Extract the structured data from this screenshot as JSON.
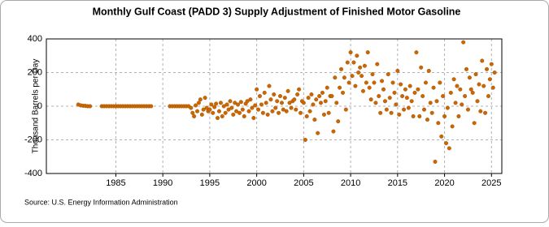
{
  "chart_data": {
    "type": "scatter",
    "title": "Monthly Gulf Coast (PADD 3) Supply Adjustment of Finished Motor Gasoline",
    "y_label": "Thousand Barrels per Day",
    "source": "Source: U.S. Energy Information Administration",
    "color": "#cc6600",
    "grid": true,
    "xlim": [
      1977.6,
      2026.1
    ],
    "ylim": [
      -400,
      400
    ],
    "xticks": [
      1985,
      1990,
      1995,
      2000,
      2005,
      2010,
      2015,
      2020,
      2025
    ],
    "yticks": [
      -400,
      -200,
      0,
      200,
      400
    ],
    "x": [
      1981.0,
      1981.25,
      1981.5,
      1981.75,
      1982.0,
      1982.25,
      1983.5,
      1983.75,
      1984.0,
      1984.25,
      1984.5,
      1984.75,
      1985.0,
      1985.25,
      1985.5,
      1985.75,
      1986.0,
      1986.25,
      1986.5,
      1986.75,
      1987.0,
      1987.25,
      1987.5,
      1987.75,
      1988.0,
      1988.25,
      1988.5,
      1988.75,
      1990.75,
      1991.0,
      1991.25,
      1991.5,
      1991.75,
      1992.0,
      1992.25,
      1992.5,
      1992.75,
      1993.0,
      1993.17,
      1993.33,
      1993.5,
      1993.67,
      1993.83,
      1994.0,
      1994.17,
      1994.33,
      1994.5,
      1994.67,
      1994.83,
      1995.0,
      1995.17,
      1995.33,
      1995.5,
      1995.67,
      1995.83,
      1996.0,
      1996.17,
      1996.33,
      1996.5,
      1996.67,
      1996.83,
      1997.0,
      1997.17,
      1997.33,
      1997.5,
      1997.67,
      1997.83,
      1998.0,
      1998.17,
      1998.33,
      1998.5,
      1998.67,
      1998.83,
      1999.0,
      1999.17,
      1999.33,
      1999.5,
      1999.67,
      1999.83,
      2000.0,
      2000.17,
      2000.33,
      2000.5,
      2000.67,
      2000.83,
      2001.0,
      2001.17,
      2001.33,
      2001.5,
      2001.67,
      2001.83,
      2002.0,
      2002.17,
      2002.33,
      2002.5,
      2002.67,
      2002.83,
      2003.0,
      2003.17,
      2003.33,
      2003.5,
      2003.67,
      2003.83,
      2004.0,
      2004.17,
      2004.33,
      2004.5,
      2004.67,
      2004.83,
      2005.0,
      2005.17,
      2005.33,
      2005.5,
      2005.67,
      2005.83,
      2006.0,
      2006.17,
      2006.33,
      2006.5,
      2006.67,
      2006.83,
      2007.0,
      2007.17,
      2007.33,
      2007.5,
      2007.67,
      2007.83,
      2008.0,
      2008.17,
      2008.33,
      2008.5,
      2008.67,
      2008.83,
      2009.0,
      2009.17,
      2009.33,
      2009.5,
      2009.67,
      2009.83,
      2010.0,
      2010.17,
      2010.33,
      2010.5,
      2010.67,
      2010.83,
      2011.0,
      2011.17,
      2011.33,
      2011.5,
      2011.67,
      2011.83,
      2012.0,
      2012.17,
      2012.33,
      2012.5,
      2012.67,
      2012.83,
      2013.0,
      2013.17,
      2013.33,
      2013.5,
      2013.67,
      2013.83,
      2014.0,
      2014.17,
      2014.33,
      2014.5,
      2014.67,
      2014.83,
      2015.0,
      2015.17,
      2015.33,
      2015.5,
      2015.67,
      2015.83,
      2016.0,
      2016.17,
      2016.33,
      2016.5,
      2016.67,
      2016.83,
      2017.0,
      2017.17,
      2017.33,
      2017.5,
      2017.67,
      2017.83,
      2018.0,
      2018.17,
      2018.33,
      2018.5,
      2018.67,
      2018.83,
      2019.0,
      2019.17,
      2019.33,
      2019.5,
      2019.67,
      2019.83,
      2020.0,
      2020.17,
      2020.33,
      2020.5,
      2020.67,
      2020.83,
      2021.0,
      2021.17,
      2021.33,
      2021.5,
      2021.67,
      2021.83,
      2022.0,
      2022.17,
      2022.33,
      2022.5,
      2022.67,
      2022.83,
      2023.0,
      2023.17,
      2023.33,
      2023.5,
      2023.67,
      2023.83,
      2024.0,
      2024.17,
      2024.33,
      2024.5,
      2024.67,
      2024.83,
      2025.0,
      2025.17,
      2025.33
    ],
    "values": [
      10,
      5,
      3,
      2,
      0,
      0,
      0,
      0,
      0,
      0,
      0,
      0,
      0,
      0,
      0,
      0,
      0,
      0,
      0,
      0,
      0,
      0,
      0,
      0,
      0,
      0,
      0,
      0,
      0,
      0,
      0,
      0,
      0,
      0,
      0,
      0,
      0,
      -10,
      -40,
      -60,
      5,
      -30,
      20,
      40,
      -50,
      -20,
      50,
      -10,
      -30,
      -20,
      10,
      -40,
      -5,
      15,
      -70,
      -30,
      20,
      -60,
      0,
      -40,
      10,
      -20,
      30,
      -10,
      -50,
      20,
      -30,
      10,
      -40,
      25,
      -20,
      -60,
      15,
      30,
      -30,
      40,
      -10,
      -70,
      5,
      100,
      -20,
      60,
      10,
      -40,
      80,
      20,
      -50,
      120,
      40,
      -30,
      70,
      -10,
      30,
      -40,
      60,
      20,
      -20,
      50,
      -30,
      90,
      20,
      -10,
      30,
      40,
      -20,
      70,
      100,
      -40,
      30,
      20,
      -200,
      -60,
      50,
      -30,
      70,
      10,
      -80,
      40,
      -160,
      60,
      20,
      80,
      -50,
      30,
      110,
      -40,
      60,
      60,
      -150,
      170,
      20,
      -90,
      110,
      220,
      80,
      170,
      -20,
      260,
      140,
      320,
      180,
      260,
      120,
      300,
      200,
      230,
      180,
      90,
      240,
      140,
      320,
      110,
      40,
      190,
      140,
      20,
      250,
      60,
      -40,
      150,
      100,
      30,
      -20,
      190,
      50,
      -40,
      140,
      80,
      10,
      210,
      -50,
      130,
      60,
      -20,
      100,
      50,
      -10,
      120,
      30,
      -60,
      80,
      320,
      100,
      -60,
      230,
      60,
      -20,
      140,
      -80,
      210,
      20,
      -40,
      110,
      -330,
      30,
      -100,
      140,
      -180,
      60,
      -60,
      -220,
      -10,
      -250,
      80,
      -120,
      160,
      20,
      120,
      -60,
      100,
      10,
      380,
      60,
      220,
      -20,
      170,
      100,
      80,
      -100,
      190,
      30,
      130,
      -30,
      270,
      120,
      -40,
      220,
      60,
      160,
      250,
      110,
      200
    ]
  }
}
